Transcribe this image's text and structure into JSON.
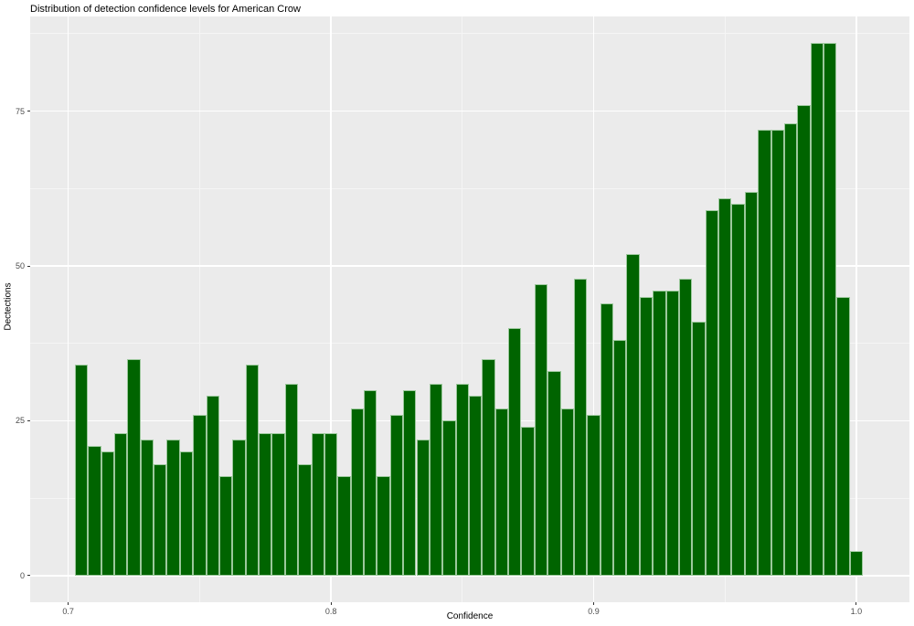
{
  "title": "Distribution of detection confidence levels for American Crow",
  "chart_data": {
    "type": "bar",
    "subtype": "histogram",
    "title": "Distribution of detection confidence levels for American Crow",
    "xlabel": "Confidence",
    "ylabel": "Dectections",
    "bin_width": 0.005,
    "bin_centers": [
      0.705,
      0.71,
      0.715,
      0.72,
      0.725,
      0.73,
      0.735,
      0.74,
      0.745,
      0.75,
      0.755,
      0.76,
      0.765,
      0.77,
      0.775,
      0.78,
      0.785,
      0.79,
      0.795,
      0.8,
      0.805,
      0.81,
      0.815,
      0.82,
      0.825,
      0.83,
      0.835,
      0.84,
      0.845,
      0.85,
      0.855,
      0.86,
      0.865,
      0.87,
      0.875,
      0.88,
      0.885,
      0.89,
      0.895,
      0.9,
      0.905,
      0.91,
      0.915,
      0.92,
      0.925,
      0.93,
      0.935,
      0.94,
      0.945,
      0.95,
      0.955,
      0.96,
      0.965,
      0.97,
      0.975,
      0.98,
      0.985,
      0.99,
      0.995,
      1.0
    ],
    "counts": [
      34,
      21,
      20,
      23,
      35,
      22,
      18,
      22,
      20,
      26,
      29,
      16,
      22,
      34,
      23,
      23,
      31,
      18,
      23,
      23,
      16,
      27,
      30,
      16,
      26,
      30,
      22,
      31,
      25,
      31,
      29,
      35,
      27,
      40,
      24,
      47,
      33,
      27,
      48,
      26,
      44,
      38,
      52,
      45,
      46,
      46,
      48,
      41,
      59,
      61,
      60,
      62,
      72,
      72,
      73,
      76,
      86,
      86,
      45,
      4
    ],
    "x_ticks": [
      0.7,
      0.8,
      0.9,
      1.0
    ],
    "x_tick_labels": [
      "0.7",
      "0.8",
      "0.9",
      "1.0"
    ],
    "x_minor_ticks": [
      0.75,
      0.85,
      0.95
    ],
    "y_ticks": [
      0,
      25,
      50,
      75
    ],
    "y_tick_labels": [
      "0",
      "25",
      "50",
      "75"
    ],
    "y_minor_ticks": [
      12.5,
      37.5,
      62.5,
      87.5
    ],
    "xlim": [
      0.6855,
      1.0202
    ],
    "ylim": [
      -4.3,
      90.3
    ],
    "grid": "on",
    "legend": "none",
    "colors": {
      "bar_fill": "#006400",
      "bar_border": "#9cc89c",
      "panel_background": "#ebebeb",
      "grid_major": "#ffffff",
      "grid_minor": "#f5f5f5",
      "tick_text": "#4d4d4d",
      "title_text": "#000000"
    }
  }
}
